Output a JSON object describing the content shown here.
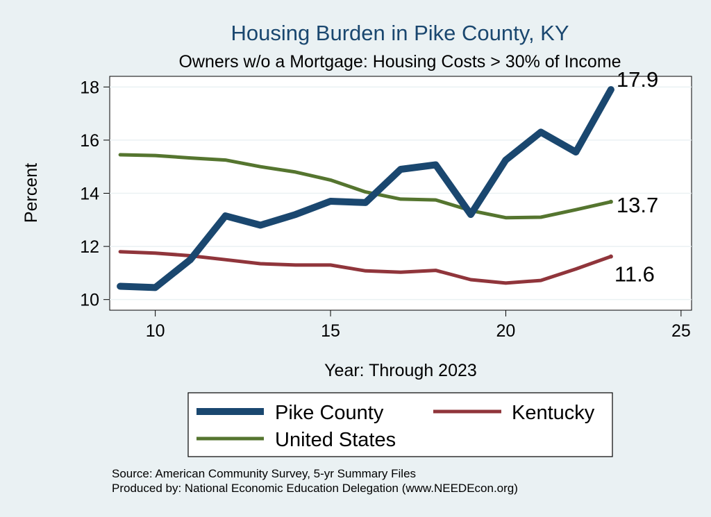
{
  "chart_data": {
    "type": "line",
    "title": "Housing Burden in Pike County, KY",
    "subtitle": "Owners w/o a Mortgage: Housing Costs > 30% of Income",
    "xlabel": "Year: Through 2023",
    "ylabel": "Percent",
    "xlim": [
      8.7,
      25.3
    ],
    "ylim": [
      9.6,
      18.4
    ],
    "xticks": [
      10,
      15,
      20,
      25
    ],
    "yticks": [
      10,
      12,
      14,
      16,
      18
    ],
    "grid": true,
    "legend_position": "bottom",
    "x": [
      9,
      10,
      11,
      12,
      13,
      14,
      15,
      16,
      17,
      18,
      19,
      20,
      21,
      22,
      23
    ],
    "series": [
      {
        "name": "Pike County",
        "color": "#1a476f",
        "values": [
          10.5,
          10.45,
          11.5,
          13.15,
          12.8,
          13.2,
          13.7,
          13.65,
          14.9,
          15.07,
          13.2,
          15.25,
          16.3,
          15.55,
          17.9
        ],
        "end_label": "17.9"
      },
      {
        "name": "Kentucky",
        "color": "#90353b",
        "values": [
          11.8,
          11.75,
          11.65,
          11.5,
          11.35,
          11.3,
          11.3,
          11.08,
          11.03,
          11.1,
          10.75,
          10.62,
          10.72,
          11.15,
          11.62
        ],
        "end_label": "11.6"
      },
      {
        "name": "United States",
        "color": "#55752f",
        "values": [
          15.45,
          15.42,
          15.33,
          15.25,
          15.0,
          14.8,
          14.5,
          14.05,
          13.78,
          13.75,
          13.35,
          13.08,
          13.1,
          13.38,
          13.68
        ],
        "end_label": "13.7"
      }
    ],
    "notes": [
      "Source: American Community Survey, 5-yr Summary Files",
      "Produced by: National Economic Education Delegation (www.NEEDEcon.org)"
    ]
  }
}
